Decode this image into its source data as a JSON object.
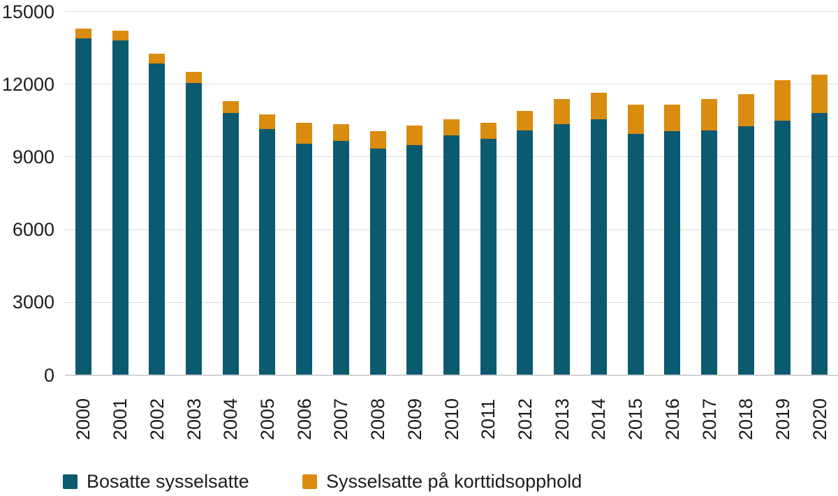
{
  "chart_data": {
    "type": "bar",
    "stacked": true,
    "categories": [
      "2000",
      "2001",
      "2002",
      "2003",
      "2004",
      "2005",
      "2006",
      "2007",
      "2008",
      "2009",
      "2010",
      "2011",
      "2012",
      "2013",
      "2014",
      "2015",
      "2016",
      "2017",
      "2018",
      "2019",
      "2020"
    ],
    "series": [
      {
        "name": "Bosatte sysselsatte",
        "color": "#0a5a70",
        "values": [
          13900,
          13800,
          12850,
          12050,
          10800,
          10150,
          9550,
          9650,
          9350,
          9500,
          9900,
          9750,
          10100,
          10350,
          10550,
          9950,
          10050,
          10100,
          10250,
          10500,
          10800
        ]
      },
      {
        "name": "Sysselsatte på korttidsopphold",
        "color": "#d98c0e",
        "values": [
          400,
          400,
          400,
          450,
          500,
          600,
          850,
          700,
          700,
          800,
          650,
          650,
          800,
          1050,
          1100,
          1200,
          1100,
          1300,
          1350,
          1650,
          1600
        ]
      }
    ],
    "xlabel": "",
    "ylabel": "",
    "ylim": [
      0,
      15000
    ],
    "yticks": [
      0,
      3000,
      6000,
      9000,
      12000,
      15000
    ],
    "grid": true,
    "legend_position": "bottom"
  },
  "style": {
    "grid_color": "#dcdcdc",
    "baseline_color": "#d2d2d2",
    "text_color": "#1d1d1d",
    "background": "#ffffff"
  }
}
